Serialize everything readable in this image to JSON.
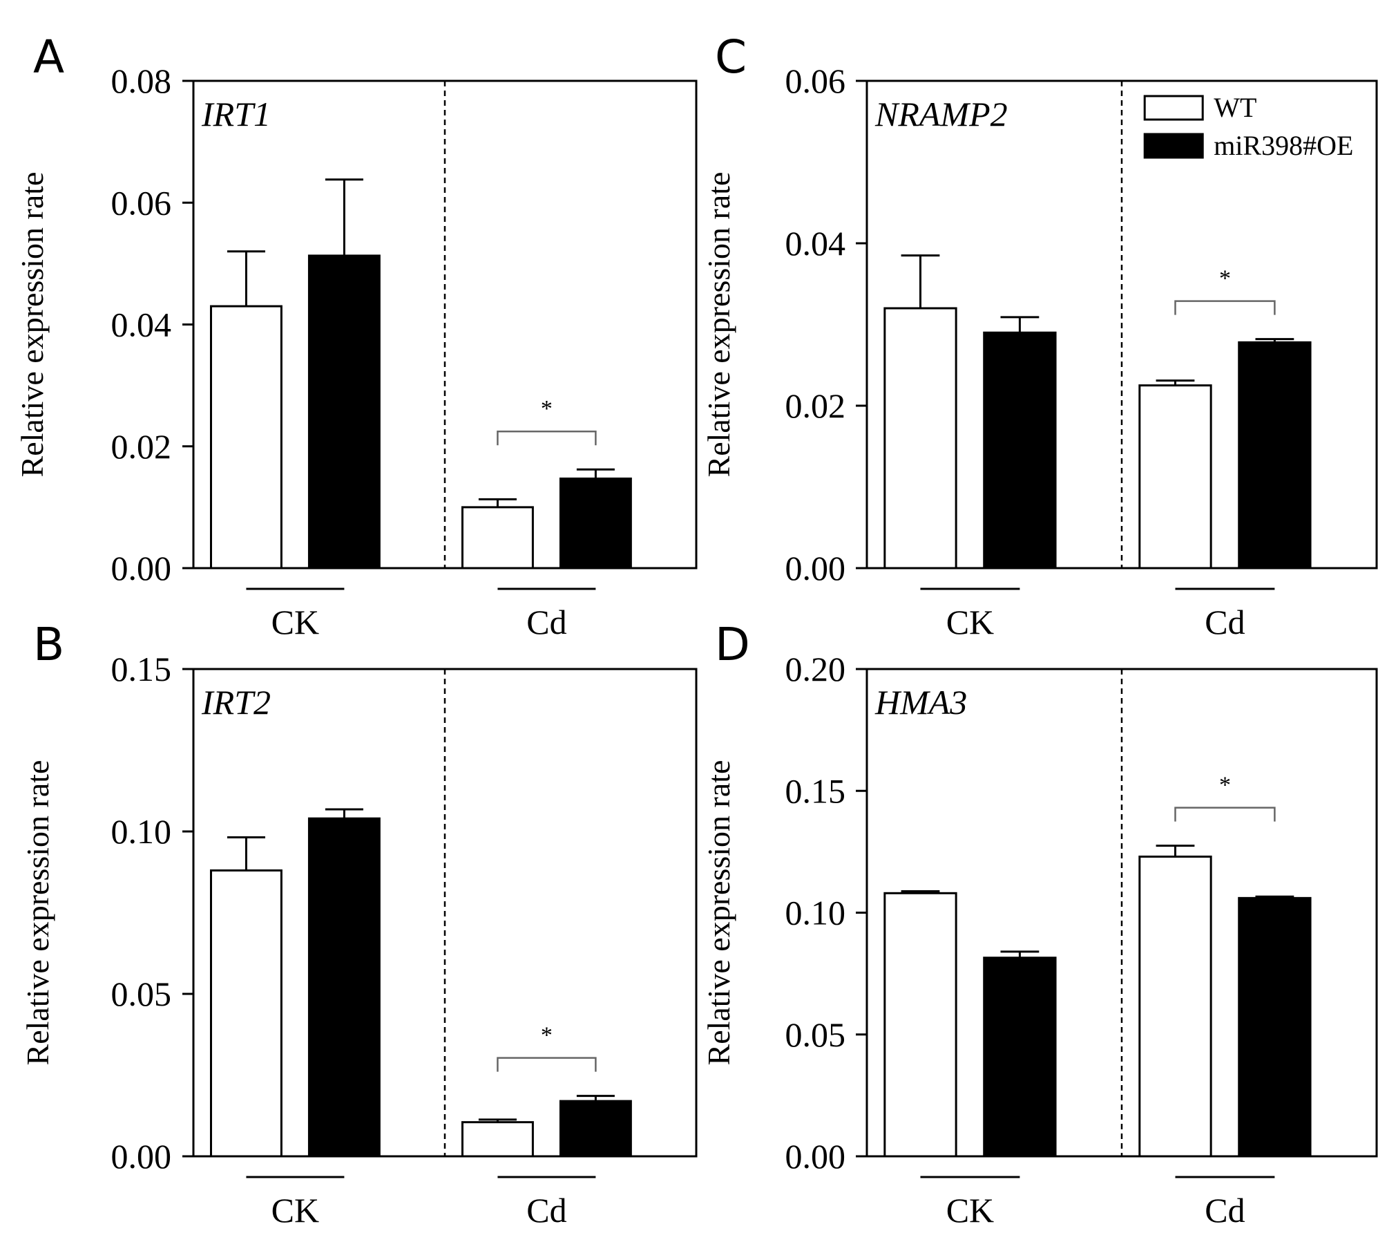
{
  "chart_data": [
    {
      "type": "bar",
      "panel_label": "A",
      "gene": "IRT1",
      "ylabel": "Relative expression rate",
      "ylim": [
        0,
        0.08
      ],
      "yticks": [
        "0.00",
        "0.02",
        "0.04",
        "0.06",
        "0.08"
      ],
      "categories": [
        "CK",
        "Cd"
      ],
      "series": [
        {
          "name": "WT",
          "values": [
            0.043,
            0.01
          ],
          "errors": [
            0.009,
            0.0013
          ]
        },
        {
          "name": "miR398#OE",
          "values": [
            0.0513,
            0.0147
          ],
          "errors": [
            0.0125,
            0.0015
          ]
        }
      ],
      "significance": [
        {
          "category": "Cd",
          "label": "*"
        }
      ]
    },
    {
      "type": "bar",
      "panel_label": "B",
      "gene": "IRT2",
      "ylabel": "Relative expression rate",
      "ylim": [
        0,
        0.15
      ],
      "yticks": [
        "0.00",
        "0.05",
        "0.10",
        "0.15"
      ],
      "categories": [
        "CK",
        "Cd"
      ],
      "series": [
        {
          "name": "WT",
          "values": [
            0.088,
            0.0105
          ],
          "errors": [
            0.0102,
            0.0008
          ]
        },
        {
          "name": "miR398#OE",
          "values": [
            0.104,
            0.017
          ],
          "errors": [
            0.0028,
            0.0016
          ]
        }
      ],
      "significance": [
        {
          "category": "Cd",
          "label": "*"
        }
      ]
    },
    {
      "type": "bar",
      "panel_label": "C",
      "gene": "NRAMP2",
      "ylabel": "Relative expression rate",
      "ylim": [
        0,
        0.06
      ],
      "yticks": [
        "0.00",
        "0.02",
        "0.04",
        "0.06"
      ],
      "categories": [
        "CK",
        "Cd"
      ],
      "series": [
        {
          "name": "WT",
          "values": [
            0.032,
            0.0225
          ],
          "errors": [
            0.0065,
            0.0006
          ]
        },
        {
          "name": "miR398#OE",
          "values": [
            0.029,
            0.0278
          ],
          "errors": [
            0.0019,
            0.0004
          ]
        }
      ],
      "significance": [
        {
          "category": "Cd",
          "label": "*"
        }
      ],
      "legend": {
        "position": "top-right",
        "entries": [
          "WT",
          "miR398#OE"
        ]
      }
    },
    {
      "type": "bar",
      "panel_label": "D",
      "gene": "HMA3",
      "ylabel": "Relative expression rate",
      "ylim": [
        0,
        0.2
      ],
      "yticks": [
        "0.00",
        "0.05",
        "0.10",
        "0.15",
        "0.20"
      ],
      "categories": [
        "CK",
        "Cd"
      ],
      "series": [
        {
          "name": "WT",
          "values": [
            0.108,
            0.123
          ],
          "errors": [
            0.0008,
            0.0045
          ]
        },
        {
          "name": "miR398#OE",
          "values": [
            0.0815,
            0.106
          ],
          "errors": [
            0.0025,
            0.0006
          ]
        }
      ],
      "significance": [
        {
          "category": "Cd",
          "label": "*"
        }
      ]
    }
  ],
  "colors": {
    "wt_fill": "#ffffff",
    "oe_fill": "#000000",
    "axis": "#000000",
    "bracket": "#666666"
  }
}
